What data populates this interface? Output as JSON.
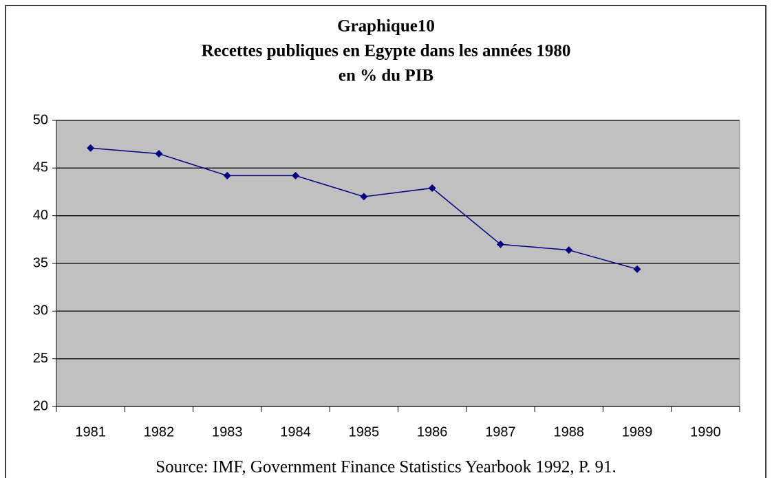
{
  "chart_data": {
    "type": "line",
    "title": [
      "Graphique10",
      "Recettes publiques en Egypte dans les années 1980",
      "en % du PIB"
    ],
    "note": "Source: IMF, Government Finance Statistics Yearbook 1992, P. 91.",
    "categories": [
      "1981",
      "1982",
      "1983",
      "1984",
      "1985",
      "1986",
      "1987",
      "1988",
      "1989",
      "1990"
    ],
    "series": [
      {
        "color": "#000080",
        "values": [
          47.1,
          46.5,
          44.2,
          44.2,
          42.0,
          42.9,
          37.0,
          36.4,
          34.4,
          null
        ]
      }
    ],
    "ylim": [
      20,
      50
    ],
    "yticks": [
      20,
      25,
      30,
      35,
      40,
      45,
      50
    ],
    "grid": true,
    "background": "#c0c0c0"
  }
}
